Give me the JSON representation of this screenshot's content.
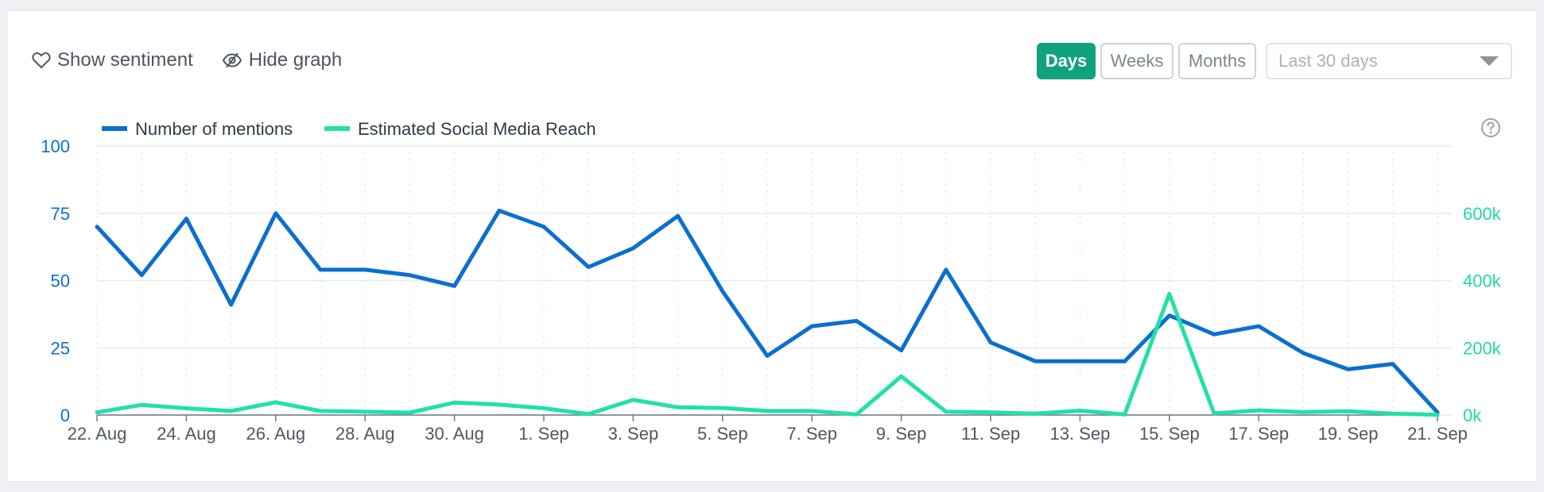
{
  "toolbar": {
    "show_sentiment": "Show sentiment",
    "hide_graph": "Hide graph",
    "days": "Days",
    "weeks": "Weeks",
    "months": "Months",
    "range_placeholder": "Last 30 days"
  },
  "colors": {
    "mentions": "#0b6fd0",
    "reach": "#22e0a8",
    "accent": "#10a27f"
  },
  "chart_data": {
    "type": "line",
    "title": "",
    "legend_placement": "top-left",
    "grid": true,
    "x": [
      "22. Aug",
      "23. Aug",
      "24. Aug",
      "25. Aug",
      "26. Aug",
      "27. Aug",
      "28. Aug",
      "29. Aug",
      "30. Aug",
      "31. Aug",
      "1. Sep",
      "2. Sep",
      "3. Sep",
      "4. Sep",
      "5. Sep",
      "6. Sep",
      "7. Sep",
      "8. Sep",
      "9. Sep",
      "10. Sep",
      "11. Sep",
      "12. Sep",
      "13. Sep",
      "14. Sep",
      "15. Sep",
      "16. Sep",
      "17. Sep",
      "18. Sep",
      "19. Sep",
      "20. Sep",
      "21. Sep"
    ],
    "x_tick_labels": [
      "22. Aug",
      "24. Aug",
      "26. Aug",
      "28. Aug",
      "30. Aug",
      "1. Sep",
      "3. Sep",
      "5. Sep",
      "7. Sep",
      "9. Sep",
      "11. Sep",
      "13. Sep",
      "15. Sep",
      "17. Sep",
      "19. Sep",
      "21. Sep"
    ],
    "y_left": {
      "ticks": [
        "0",
        "25",
        "50",
        "75",
        "100"
      ],
      "min": 0,
      "max": 100
    },
    "y_right": {
      "ticks": [
        "0k",
        "200k",
        "400k",
        "600k"
      ],
      "min": 0,
      "max": 800000
    },
    "series": [
      {
        "name": "Number of mentions",
        "axis": "left",
        "values": [
          70,
          52,
          73,
          41,
          75,
          54,
          54,
          52,
          48,
          76,
          70,
          55,
          62,
          74,
          46,
          22,
          33,
          35,
          24,
          54,
          27,
          20,
          20,
          20,
          37,
          30,
          33,
          23,
          17,
          19,
          1
        ]
      },
      {
        "name": "Estimated Social Media Reach",
        "axis": "right",
        "values": [
          8000,
          30000,
          20000,
          12000,
          38000,
          12000,
          10000,
          7000,
          37000,
          31000,
          20000,
          3000,
          45000,
          23000,
          21000,
          12000,
          12000,
          2000,
          115000,
          10000,
          8000,
          4000,
          13000,
          2000,
          360000,
          5000,
          14000,
          9000,
          11000,
          4000,
          1000
        ]
      }
    ]
  }
}
